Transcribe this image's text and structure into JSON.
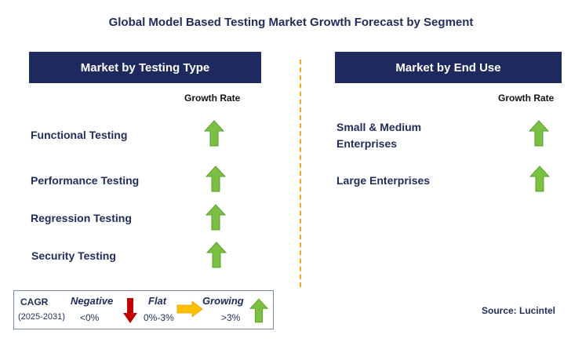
{
  "title": "Global Model Based Testing Market Growth Forecast by Segment",
  "left_panel": {
    "header": "Market by Testing Type",
    "growth_rate_label": "Growth Rate",
    "segments": [
      {
        "label": "Functional Testing",
        "trend": "growing"
      },
      {
        "label": "Performance Testing",
        "trend": "growing"
      },
      {
        "label": "Regression Testing",
        "trend": "growing"
      },
      {
        "label": "Security Testing",
        "trend": "growing"
      }
    ]
  },
  "right_panel": {
    "header": "Market by End Use",
    "growth_rate_label": "Growth Rate",
    "segments": [
      {
        "label_line1": "Small & Medium",
        "label_line2": "Enterprises",
        "trend": "growing"
      },
      {
        "label": "Large Enterprises",
        "trend": "growing"
      }
    ]
  },
  "legend": {
    "cagr_label": "CAGR",
    "period": "(2025-2031)",
    "negative_label": "Negative",
    "negative_range": "<0%",
    "flat_label": "Flat",
    "flat_range": "0%-3%",
    "growing_label": "Growing",
    "growing_range": ">3%"
  },
  "source": "Source: Lucintel",
  "colors": {
    "header_bg": "#1e2a5e",
    "growing_arrow": "#7cc043",
    "negative_arrow": "#c00000",
    "flat_arrow": "#ffc000",
    "divider": "#f5a623"
  }
}
